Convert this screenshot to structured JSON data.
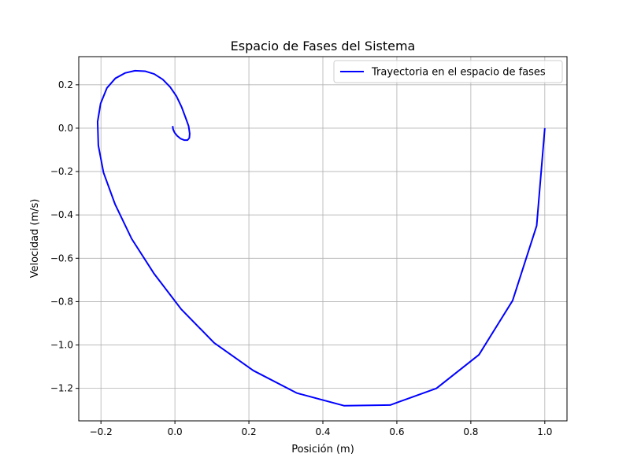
{
  "chart_data": {
    "type": "line",
    "title": "Espacio de Fases del Sistema",
    "xlabel": "Posición (m)",
    "ylabel": "Velocidad (m/s)",
    "xlim": [
      -0.26,
      1.06
    ],
    "ylim": [
      -1.35,
      0.33
    ],
    "xticks": [
      -0.2,
      0.0,
      0.2,
      0.4,
      0.6,
      0.8,
      1.0
    ],
    "xtick_labels": [
      "−0.2",
      "0.0",
      "0.2",
      "0.4",
      "0.6",
      "0.8",
      "1.0"
    ],
    "yticks": [
      -1.2,
      -1.0,
      -0.8,
      -0.6,
      -0.4,
      -0.2,
      0.0,
      0.2
    ],
    "ytick_labels": [
      "−1.2",
      "−1.0",
      "−0.8",
      "−0.6",
      "−0.4",
      "−0.2",
      "0.0",
      "0.2"
    ],
    "grid": true,
    "legend_position": "top-right",
    "series": [
      {
        "name": "Trayectoria en el espacio de fases",
        "color": "#0000ff",
        "x": [
          1.0,
          0.978,
          0.913,
          0.822,
          0.707,
          0.582,
          0.457,
          0.33,
          0.212,
          0.106,
          0.017,
          -0.056,
          -0.117,
          -0.162,
          -0.193,
          -0.207,
          -0.209,
          -0.201,
          -0.184,
          -0.161,
          -0.134,
          -0.108,
          -0.081,
          -0.056,
          -0.033,
          -0.013,
          0.004,
          0.018,
          0.029,
          0.037,
          0.04,
          0.039,
          0.034,
          0.025,
          0.015,
          0.006,
          -0.001,
          -0.005,
          -0.006
        ],
        "y": [
          0.0,
          -0.45,
          -0.795,
          -1.045,
          -1.2,
          -1.277,
          -1.28,
          -1.222,
          -1.118,
          -0.99,
          -0.835,
          -0.672,
          -0.51,
          -0.35,
          -0.205,
          -0.08,
          0.03,
          0.113,
          0.185,
          0.23,
          0.255,
          0.265,
          0.263,
          0.25,
          0.225,
          0.19,
          0.148,
          0.098,
          0.048,
          0.01,
          -0.025,
          -0.045,
          -0.055,
          -0.055,
          -0.048,
          -0.035,
          -0.02,
          -0.005,
          0.01
        ]
      }
    ]
  }
}
